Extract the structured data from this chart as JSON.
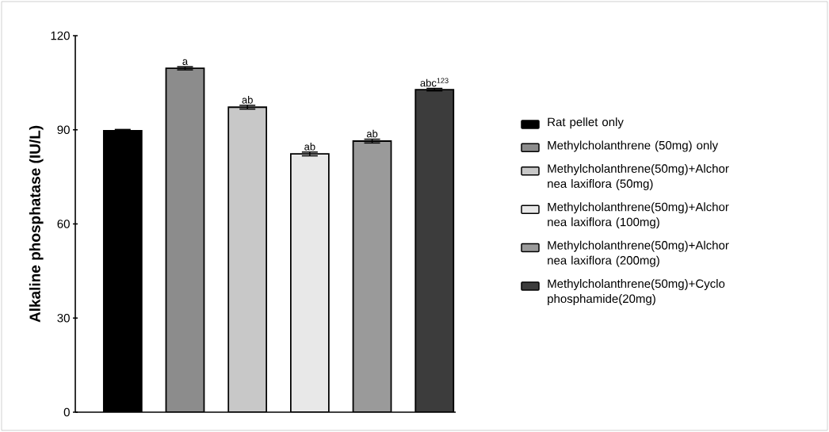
{
  "chart_data": {
    "type": "bar",
    "ylabel": "Alkaline phosphatase (IU/L)",
    "categories": [
      null,
      null,
      null,
      null,
      null,
      null
    ],
    "annotations": [
      {
        "text": "a",
        "y": 109.6
      },
      {
        "text": "ab",
        "y": 97.2
      },
      {
        "text": "ab",
        "y": 82.3
      },
      {
        "text": "ab",
        "y": 86.4
      },
      {
        "text": "abc$^{123}$",
        "y": 102.8
      }
    ],
    "ylim": [
      0,
      120
    ],
    "yticks": [
      0,
      30,
      60,
      90,
      120
    ],
    "legend": "right",
    "series": [
      {
        "name": "Rat pellet only",
        "color": "#000000",
        "values": [
          89.7,
          null,
          null,
          null,
          null,
          null
        ],
        "errors": [
          0.4,
          null,
          null,
          null,
          null,
          null
        ]
      },
      {
        "name": "Methylcholanthrene (50mg) only",
        "color": "#8c8c8c",
        "values": [
          null,
          109.6,
          null,
          null,
          null,
          null
        ],
        "errors": [
          null,
          0.5,
          null,
          null,
          null,
          null
        ]
      },
      {
        "name": "Methylcholanthrene(50mg)+Alchor nea laxiflora (50mg)",
        "color": "#c8c8c8",
        "values": [
          null,
          null,
          97.2,
          null,
          null,
          null
        ],
        "errors": [
          null,
          null,
          0.6,
          null,
          null,
          null
        ]
      },
      {
        "name": "Methylcholanthrene(50mg)+Alchor nea laxiflora (100mg)",
        "color": "#e8e8e8",
        "values": [
          null,
          null,
          null,
          82.3,
          null,
          null
        ],
        "errors": [
          null,
          null,
          null,
          0.6,
          null,
          null
        ]
      },
      {
        "name": "Methylcholanthrene(50mg)+Alchor nea laxiflora (200mg)",
        "color": "#9a9a9a",
        "values": [
          null,
          null,
          null,
          null,
          86.4,
          null
        ],
        "errors": [
          null,
          null,
          null,
          null,
          0.6,
          null
        ]
      },
      {
        "name": "Methylcholanthrene(50mg)+Cyclo phosphamide(20mg)",
        "color": "#3c3c3c",
        "values": [
          null,
          null,
          null,
          null,
          null,
          102.8
        ],
        "errors": [
          null,
          null,
          null,
          null,
          null,
          0.4
        ]
      }
    ]
  }
}
